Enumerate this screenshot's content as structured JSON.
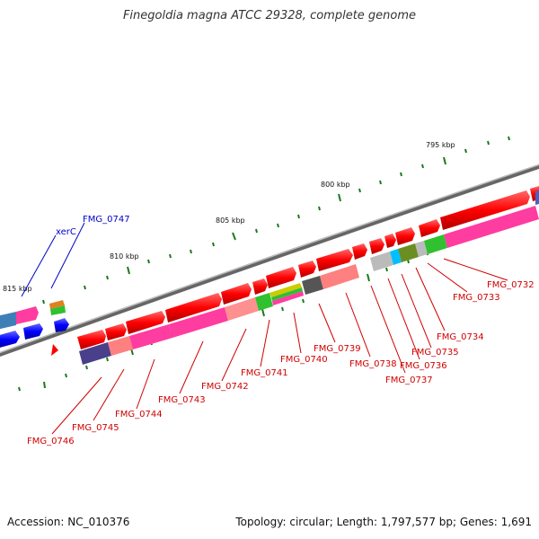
{
  "title": "Finegoldia magna ATCC 29328, complete genome",
  "footer": {
    "accession": "Accession: NC_010376",
    "topology": "Topology: circular; Length: 1,797,577 bp; Genes: 1,691"
  },
  "ticks": [
    "795 kbp",
    "800 kbp",
    "805 kbp",
    "810 kbp",
    "815 kbp"
  ],
  "labels": {
    "fmg0747": "FMG_0747",
    "xerc": "xerC",
    "fmg0746": "FMG_0746",
    "fmg0745": "FMG_0745",
    "fmg0744": "FMG_0744",
    "fmg0743": "FMG_0743",
    "fmg0742": "FMG_0742",
    "fmg0741": "FMG_0741",
    "fmg0740": "FMG_0740",
    "fmg0739": "FMG_0739",
    "fmg0738": "FMG_0738",
    "fmg0737": "FMG_0737",
    "fmg0736": "FMG_0736",
    "fmg0735": "FMG_0735",
    "fmg0734": "FMG_0734",
    "fmg0733": "FMG_0733",
    "fmg0732": "FMG_0732"
  },
  "colors": {
    "backbone": "#7a7a7a",
    "gene_forward": "#ff0000",
    "gene_reverse": "#0000ff",
    "label_forward": "#d00000",
    "label_reverse": "#0000cc",
    "tick": "#1a7a1a"
  }
}
